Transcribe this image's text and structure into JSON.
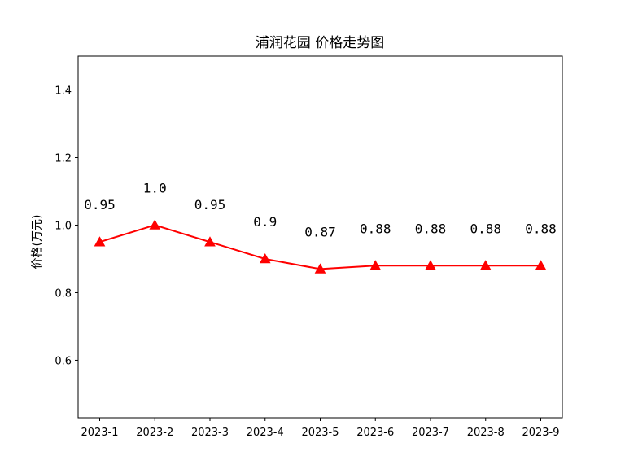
{
  "chart_data": {
    "type": "line",
    "title": "浦润花园 价格走势图",
    "xlabel": "",
    "ylabel": "价格(万元)",
    "categories": [
      "2023-1",
      "2023-2",
      "2023-3",
      "2023-4",
      "2023-5",
      "2023-6",
      "2023-7",
      "2023-8",
      "2023-9"
    ],
    "values": [
      0.95,
      1.0,
      0.95,
      0.9,
      0.87,
      0.88,
      0.88,
      0.88,
      0.88
    ],
    "data_labels": [
      "0.95",
      "1.0",
      "0.95",
      "0.9",
      "0.87",
      "0.88",
      "0.88",
      "0.88",
      "0.88"
    ],
    "ylim": [
      0.43,
      1.5
    ],
    "yticks": [
      0.6,
      0.8,
      1.0,
      1.2,
      1.4
    ],
    "ytick_labels": [
      "0.6",
      "0.8",
      "1.0",
      "1.2",
      "1.4"
    ],
    "grid": false,
    "line_color": "#ff0000",
    "marker": "triangle"
  }
}
